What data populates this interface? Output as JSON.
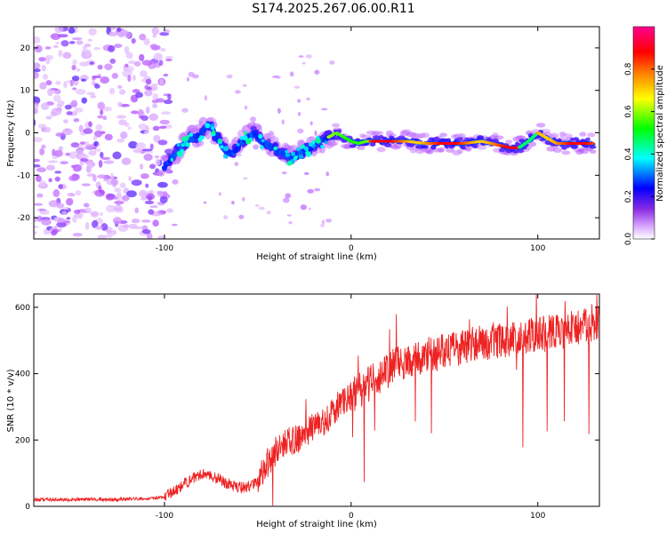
{
  "page": {
    "title": "S174.2025.267.06.00.R11"
  },
  "chart_data": [
    {
      "type": "heatmap",
      "panel": "spectrogram",
      "xlabel": "Height of straight line (km)",
      "ylabel": "Frequency (Hz)",
      "xlim": [
        -170,
        133
      ],
      "ylim": [
        -25,
        25
      ],
      "xticks": [
        -100,
        0,
        100
      ],
      "yticks": [
        -20,
        -10,
        0,
        10,
        20
      ],
      "noise_region": {
        "x_range": [
          -170,
          -97
        ],
        "y_range": [
          -25,
          25
        ]
      },
      "signal_track": {
        "x": [
          -100,
          -96,
          -92,
          -88,
          -84,
          -80,
          -76,
          -72,
          -68,
          -64,
          -60,
          -56,
          -52,
          -48,
          -44,
          -40,
          -36,
          -32,
          -28,
          -24,
          -20,
          -16,
          -12,
          -8,
          -4,
          0,
          4,
          8,
          12,
          16,
          20,
          30,
          40,
          50,
          60,
          70,
          75,
          80,
          85,
          90,
          95,
          100,
          104,
          110,
          120,
          130
        ],
        "y": [
          -8,
          -6,
          -4,
          -2,
          -1,
          0,
          2,
          -1,
          -4,
          -5,
          -3,
          -1,
          0,
          -2,
          -3,
          -4,
          -5,
          -6,
          -5,
          -4,
          -3,
          -2,
          -1,
          0,
          -1,
          -2,
          -2.5,
          -2,
          -2,
          -2,
          -2,
          -2,
          -2.5,
          -2.5,
          -2.5,
          -2,
          -2.5,
          -3,
          -3.5,
          -3.5,
          -2,
          0,
          -1,
          -2.5,
          -2.5,
          -2.5
        ]
      },
      "colorbar": {
        "label": "Normalized spectral amplitude",
        "range": [
          0,
          1
        ],
        "ticks": [
          0.0,
          0.2,
          0.4,
          0.6,
          0.8
        ],
        "tick_labels": [
          "0.0",
          "0.2",
          "0.4",
          "0.6",
          "0.8"
        ],
        "colormap": [
          "#ffffff",
          "#b34dff",
          "#0000ff",
          "#00ffff",
          "#00ff00",
          "#ffff00",
          "#ff8000",
          "#ff0000",
          "#ff0080"
        ]
      }
    },
    {
      "type": "line",
      "panel": "snr",
      "xlabel": "Height of straight line (km)",
      "ylabel": "SNR (10 * v/v)",
      "xlim": [
        -170,
        133
      ],
      "ylim": [
        0,
        640
      ],
      "xticks": [
        -100,
        0,
        100
      ],
      "yticks": [
        0,
        200,
        400,
        600
      ],
      "series": [
        {
          "name": "SNR",
          "color": "#ee2222",
          "x": [
            -170,
            -160,
            -150,
            -140,
            -130,
            -120,
            -110,
            -100,
            -95,
            -90,
            -85,
            -80,
            -75,
            -70,
            -65,
            -60,
            -55,
            -50,
            -45,
            -40,
            -35,
            -30,
            -25,
            -20,
            -15,
            -10,
            -5,
            0,
            5,
            10,
            15,
            20,
            25,
            30,
            35,
            40,
            45,
            50,
            55,
            60,
            65,
            70,
            75,
            80,
            85,
            90,
            95,
            100,
            105,
            110,
            115,
            120,
            125,
            130,
            133
          ],
          "values": [
            20,
            20,
            20,
            22,
            20,
            22,
            24,
            28,
            45,
            65,
            85,
            100,
            90,
            80,
            65,
            55,
            60,
            80,
            130,
            170,
            190,
            200,
            220,
            240,
            250,
            280,
            320,
            330,
            350,
            370,
            390,
            410,
            430,
            440,
            450,
            455,
            460,
            470,
            470,
            480,
            490,
            490,
            500,
            500,
            505,
            505,
            510,
            520,
            520,
            530,
            530,
            540,
            540,
            550,
            550
          ]
        }
      ]
    }
  ]
}
